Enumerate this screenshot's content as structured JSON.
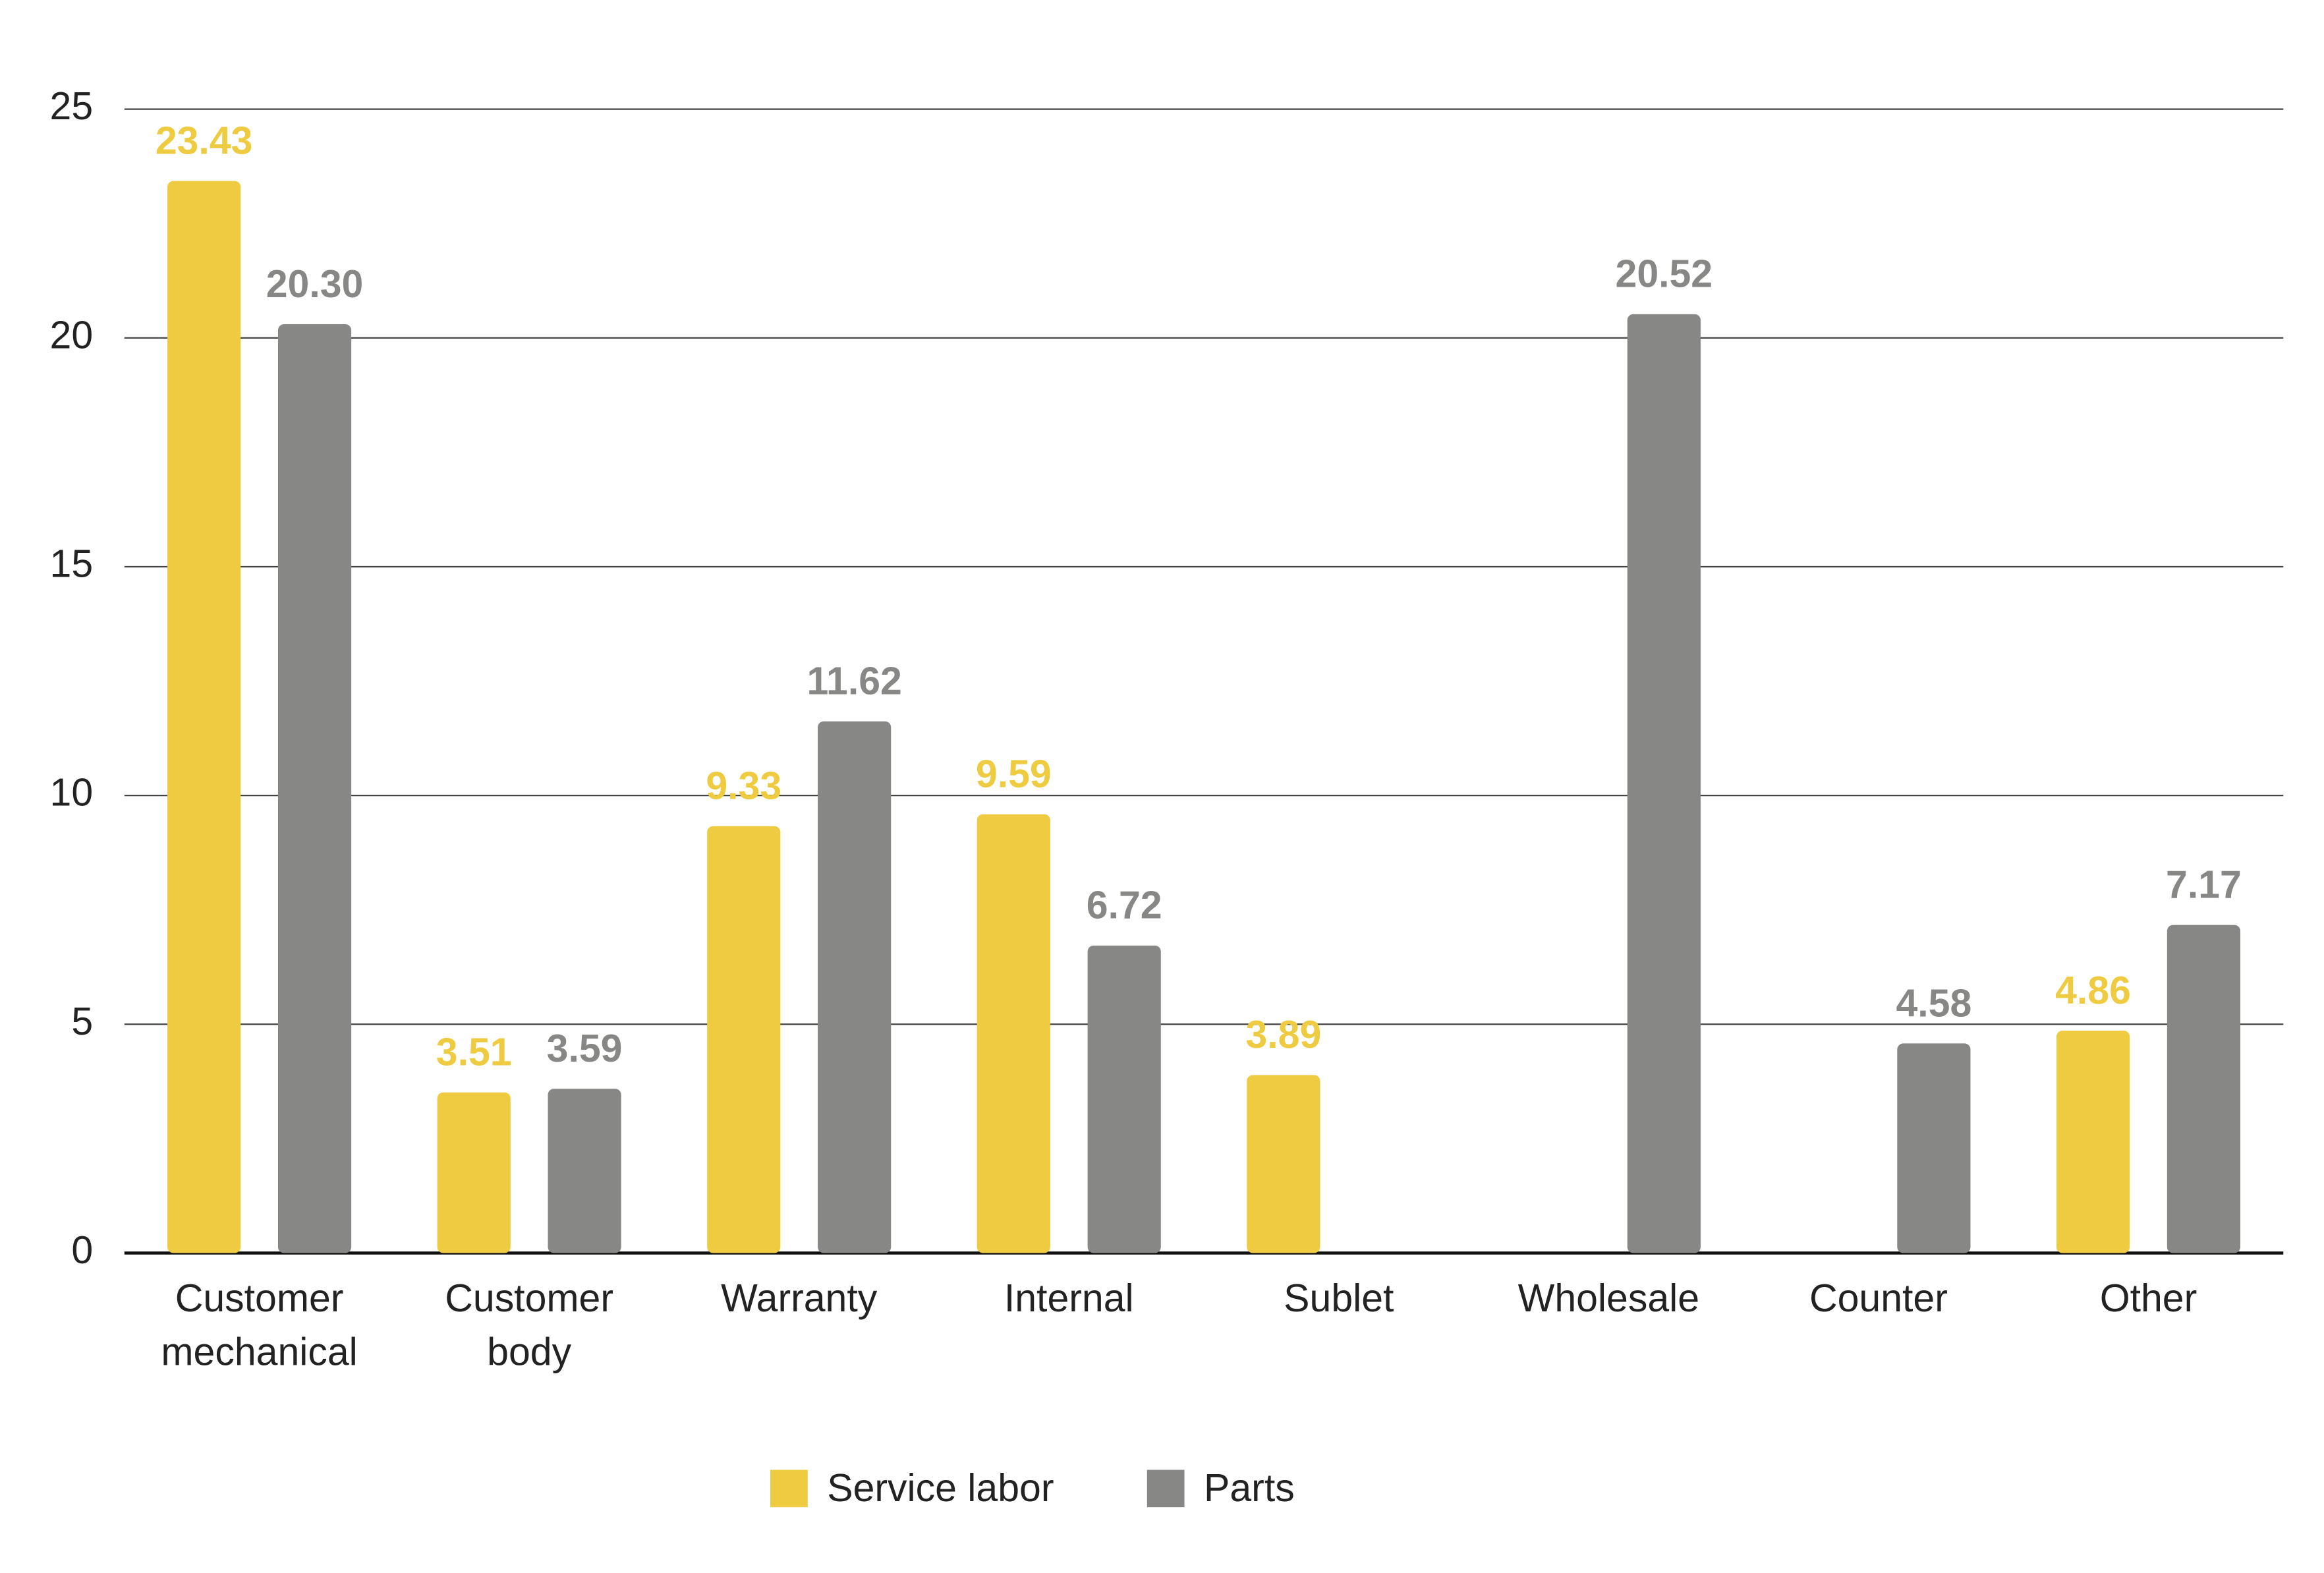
{
  "chart_data": {
    "type": "bar",
    "categories": [
      "Customer mechanical",
      "Customer body",
      "Warranty",
      "Internal",
      "Sublet",
      "Wholesale",
      "Counter",
      "Other"
    ],
    "series": [
      {
        "name": "Service labor",
        "color": "#eecb40",
        "values": [
          23.43,
          3.51,
          9.33,
          9.59,
          3.89,
          null,
          null,
          4.86
        ],
        "value_labels": [
          "23.43",
          "3.51",
          "9.33",
          "9.59",
          "3.89",
          null,
          null,
          "4.86"
        ]
      },
      {
        "name": "Parts",
        "color": "#878785",
        "values": [
          20.3,
          3.59,
          11.62,
          6.72,
          null,
          20.52,
          4.58,
          7.17
        ],
        "value_labels": [
          "20.30",
          "3.59",
          "11.62",
          "6.72",
          null,
          "20.52",
          "4.58",
          "7.17"
        ]
      }
    ],
    "ylim": [
      0,
      25
    ],
    "yticks": [
      0,
      5,
      10,
      15,
      20,
      25
    ],
    "grid": true,
    "legend": "bottom"
  }
}
